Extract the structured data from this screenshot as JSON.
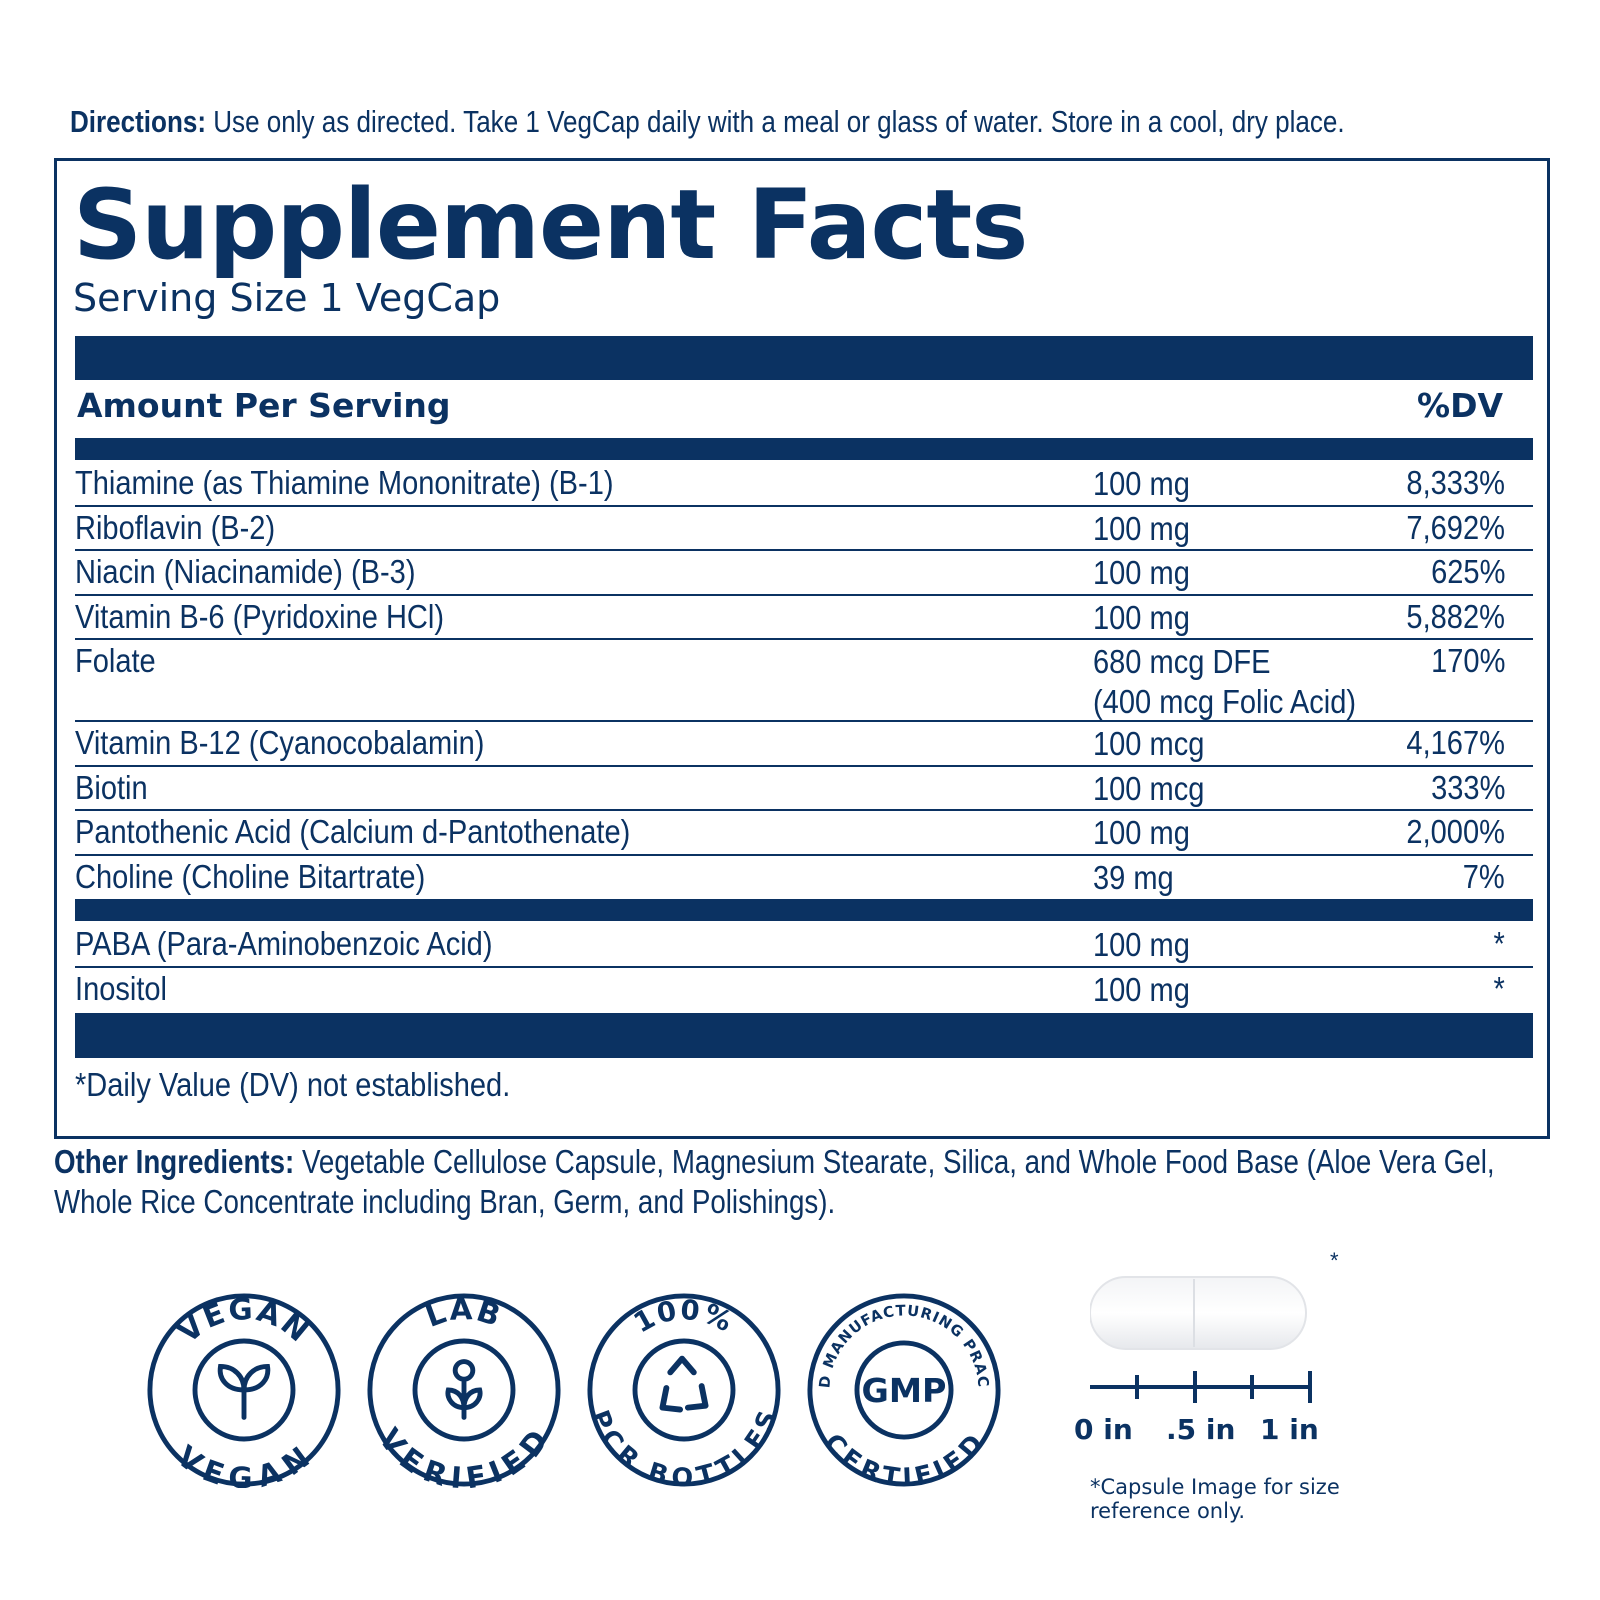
{
  "directions": {
    "label": "Directions:",
    "text": " Use only as directed. Take 1 VegCap daily with a meal or glass of water. Store in a cool, dry place."
  },
  "facts": {
    "title": "Supplement Facts",
    "serving_size": "Serving Size 1 VegCap",
    "amount_header": "Amount Per Serving",
    "dv_header": "%DV",
    "nutrients": [
      {
        "name": "Thiamine (as Thiamine Mononitrate) (B-1)",
        "amount": "100 mg",
        "dv": "8,333%"
      },
      {
        "name": "Riboflavin (B-2)",
        "amount": "100 mg",
        "dv": "7,692%"
      },
      {
        "name": "Niacin (Niacinamide) (B-3)",
        "amount": "100 mg",
        "dv": "625%"
      },
      {
        "name": "Vitamin B-6 (Pyridoxine HCl)",
        "amount": "100 mg",
        "dv": "5,882%"
      },
      {
        "name": "Folate",
        "amount": "680 mcg DFE",
        "amount2": "(400 mcg Folic Acid)",
        "dv": "170%"
      },
      {
        "name": "Vitamin B-12 (Cyanocobalamin)",
        "amount": "100 mcg",
        "dv": "4,167%"
      },
      {
        "name": "Biotin",
        "amount": "100 mcg",
        "dv": "333%"
      },
      {
        "name": "Pantothenic Acid (Calcium d-Pantothenate)",
        "amount": "100 mg",
        "dv": "2,000%"
      },
      {
        "name": "Choline (Choline Bitartrate)",
        "amount": "39 mg",
        "dv": "7%"
      }
    ],
    "other_nutrients": [
      {
        "name": "PABA (Para-Aminobenzoic Acid)",
        "amount": "100 mg",
        "dv": "*"
      },
      {
        "name": "Inositol",
        "amount": "100 mg",
        "dv": "*"
      }
    ],
    "footnote": "*Daily Value (DV) not established."
  },
  "other_ingredients": {
    "label": "Other Ingredients:",
    "text": " Vegetable Cellulose Capsule, Magnesium Stearate, Silica, and Whole Food Base (Aloe Vera Gel, Whole Rice Concentrate including Bran, Germ, and Polishings)."
  },
  "badges": {
    "vegan": {
      "top": "VEGAN",
      "bottom": "VEGAN",
      "icon": "sprout-icon"
    },
    "lab": {
      "top": "LAB",
      "bottom": "VERIFIED",
      "icon": "flower-icon"
    },
    "pcr": {
      "top": "100%",
      "bottom": "PCR BOTTLES",
      "icon": "recycle-icon"
    },
    "gmp": {
      "top": "GOOD MANUFACTURING PRACTICE",
      "center": "GMP",
      "bottom": "CERTIFIED"
    }
  },
  "capsule": {
    "star": "*",
    "scale_labels": [
      "0 in",
      ".5 in",
      "1 in"
    ],
    "note": "*Capsule Image for size reference only."
  },
  "colors": {
    "navy": "#0b3262"
  }
}
